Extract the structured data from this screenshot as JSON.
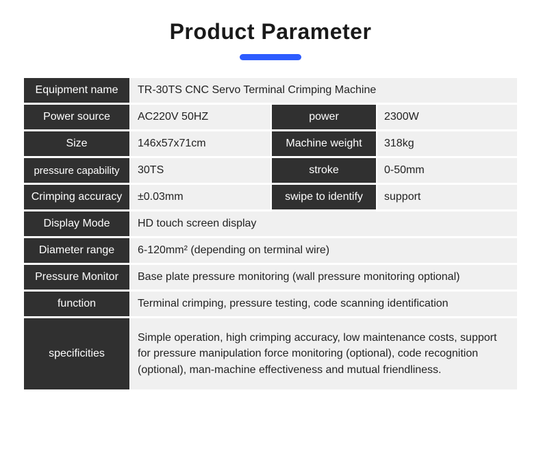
{
  "title": "Product Parameter",
  "colors": {
    "accent": "#2d5cff",
    "label_bg": "#303030",
    "label_fg": "#ffffff",
    "value_bg": "#f0f0f0",
    "value_fg": "#222222",
    "page_bg": "#ffffff"
  },
  "typography": {
    "title_fontsize": 32,
    "title_weight": 700,
    "cell_fontsize": 16
  },
  "rows": [
    {
      "type": "full",
      "label": "Equipment name",
      "value": "TR-30TS CNC Servo Terminal Crimping Machine"
    },
    {
      "type": "split",
      "label1": "Power source",
      "value1": "AC220V  50HZ",
      "label2": "power",
      "value2": "2300W"
    },
    {
      "type": "split",
      "label1": "Size",
      "value1": "146x57x71cm",
      "label2": "Machine weight",
      "value2": "318kg"
    },
    {
      "type": "split",
      "label1": "pressure capability",
      "value1": "30TS",
      "label2": "stroke",
      "value2": "0-50mm"
    },
    {
      "type": "split",
      "label1": "Crimping accuracy",
      "value1": "±0.03mm",
      "label2": "swipe to identify",
      "value2": "support"
    },
    {
      "type": "full",
      "label": "Display Mode",
      "value": "HD touch screen display"
    },
    {
      "type": "full",
      "label": "Diameter range",
      "value": "6-120mm² (depending on terminal wire)"
    },
    {
      "type": "full",
      "label": "Pressure Monitor",
      "value": "Base plate pressure monitoring (wall pressure monitoring optional)"
    },
    {
      "type": "full",
      "label": "function",
      "value": "Terminal crimping, pressure testing, code scanning identification"
    },
    {
      "type": "full_tall",
      "label": "specificities",
      "value": "Simple operation, high crimping accuracy, low maintenance costs, support for pressure manipulation force monitoring (optional), code recognition (optional), man-machine effectiveness and mutual friendliness."
    }
  ]
}
